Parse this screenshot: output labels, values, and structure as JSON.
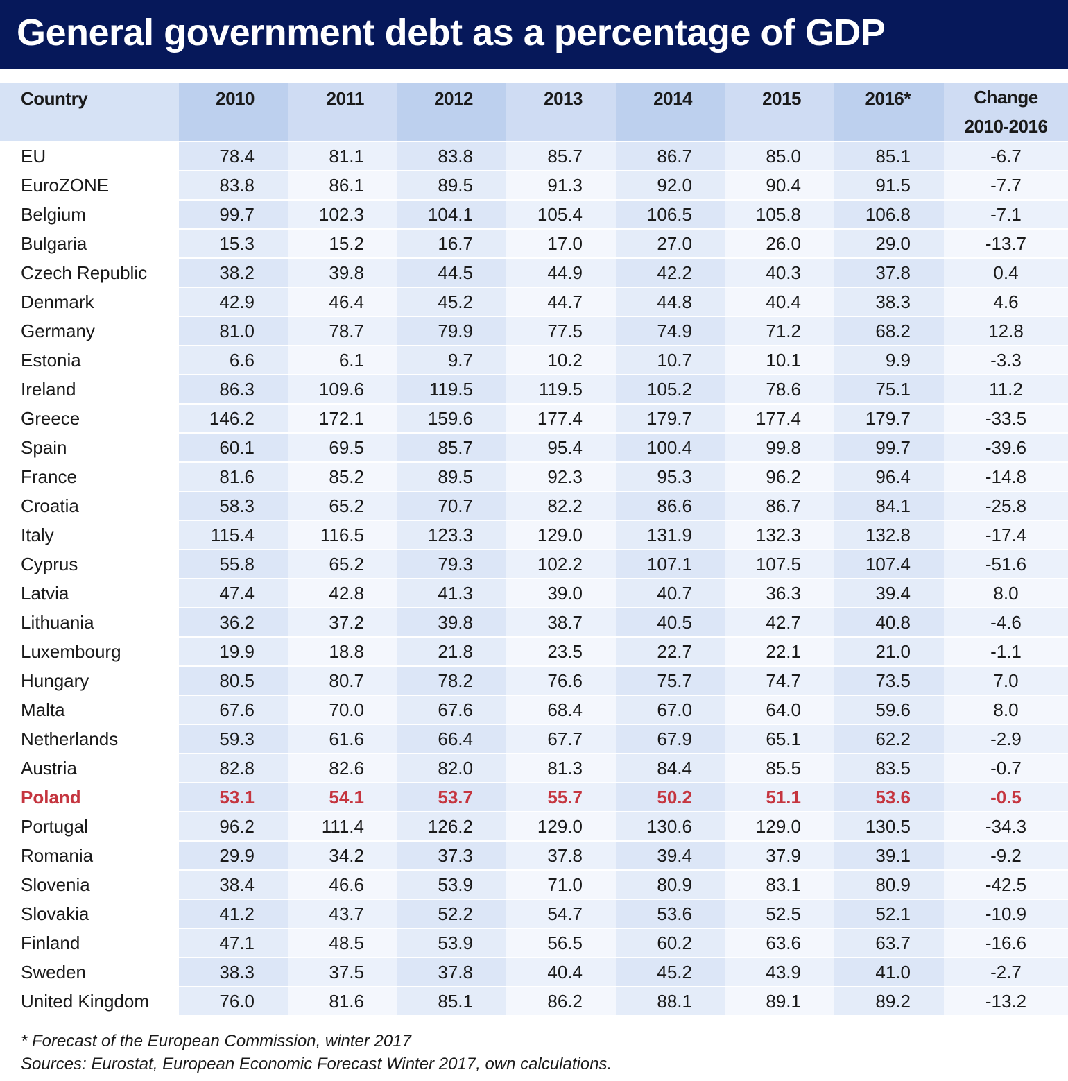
{
  "title": "General government debt as a percentage of GDP",
  "chart_data": {
    "type": "table",
    "title": "General government debt as a percentage of GDP",
    "columns": [
      "Country",
      "2010",
      "2011",
      "2012",
      "2013",
      "2014",
      "2015",
      "2016*",
      "Change 2010-2016"
    ],
    "change_header": [
      "Change",
      "2010-2016"
    ],
    "highlight_row": "Poland",
    "rows": [
      {
        "country": "EU",
        "values": [
          "78.4",
          "81.1",
          "83.8",
          "85.7",
          "86.7",
          "85.0",
          "85.1",
          "-6.7"
        ]
      },
      {
        "country": "EuroZONE",
        "values": [
          "83.8",
          "86.1",
          "89.5",
          "91.3",
          "92.0",
          "90.4",
          "91.5",
          "-7.7"
        ]
      },
      {
        "country": "Belgium",
        "values": [
          "99.7",
          "102.3",
          "104.1",
          "105.4",
          "106.5",
          "105.8",
          "106.8",
          "-7.1"
        ]
      },
      {
        "country": "Bulgaria",
        "values": [
          "15.3",
          "15.2",
          "16.7",
          "17.0",
          "27.0",
          "26.0",
          "29.0",
          "-13.7"
        ]
      },
      {
        "country": "Czech Republic",
        "values": [
          "38.2",
          "39.8",
          "44.5",
          "44.9",
          "42.2",
          "40.3",
          "37.8",
          "0.4"
        ]
      },
      {
        "country": "Denmark",
        "values": [
          "42.9",
          "46.4",
          "45.2",
          "44.7",
          "44.8",
          "40.4",
          "38.3",
          "4.6"
        ]
      },
      {
        "country": "Germany",
        "values": [
          "81.0",
          "78.7",
          "79.9",
          "77.5",
          "74.9",
          "71.2",
          "68.2",
          "12.8"
        ]
      },
      {
        "country": "Estonia",
        "values": [
          "6.6",
          "6.1",
          "9.7",
          "10.2",
          "10.7",
          "10.1",
          "9.9",
          "-3.3"
        ]
      },
      {
        "country": "Ireland",
        "values": [
          "86.3",
          "109.6",
          "119.5",
          "119.5",
          "105.2",
          "78.6",
          "75.1",
          "11.2"
        ]
      },
      {
        "country": "Greece",
        "values": [
          "146.2",
          "172.1",
          "159.6",
          "177.4",
          "179.7",
          "177.4",
          "179.7",
          "-33.5"
        ]
      },
      {
        "country": "Spain",
        "values": [
          "60.1",
          "69.5",
          "85.7",
          "95.4",
          "100.4",
          "99.8",
          "99.7",
          "-39.6"
        ]
      },
      {
        "country": "France",
        "values": [
          "81.6",
          "85.2",
          "89.5",
          "92.3",
          "95.3",
          "96.2",
          "96.4",
          "-14.8"
        ]
      },
      {
        "country": "Croatia",
        "values": [
          "58.3",
          "65.2",
          "70.7",
          "82.2",
          "86.6",
          "86.7",
          "84.1",
          "-25.8"
        ]
      },
      {
        "country": "Italy",
        "values": [
          "115.4",
          "116.5",
          "123.3",
          "129.0",
          "131.9",
          "132.3",
          "132.8",
          "-17.4"
        ]
      },
      {
        "country": "Cyprus",
        "values": [
          "55.8",
          "65.2",
          "79.3",
          "102.2",
          "107.1",
          "107.5",
          "107.4",
          "-51.6"
        ]
      },
      {
        "country": "Latvia",
        "values": [
          "47.4",
          "42.8",
          "41.3",
          "39.0",
          "40.7",
          "36.3",
          "39.4",
          "8.0"
        ]
      },
      {
        "country": "Lithuania",
        "values": [
          "36.2",
          "37.2",
          "39.8",
          "38.7",
          "40.5",
          "42.7",
          "40.8",
          "-4.6"
        ]
      },
      {
        "country": "Luxembourg",
        "values": [
          "19.9",
          "18.8",
          "21.8",
          "23.5",
          "22.7",
          "22.1",
          "21.0",
          "-1.1"
        ]
      },
      {
        "country": "Hungary",
        "values": [
          "80.5",
          "80.7",
          "78.2",
          "76.6",
          "75.7",
          "74.7",
          "73.5",
          "7.0"
        ]
      },
      {
        "country": "Malta",
        "values": [
          "67.6",
          "70.0",
          "67.6",
          "68.4",
          "67.0",
          "64.0",
          "59.6",
          "8.0"
        ]
      },
      {
        "country": "Netherlands",
        "values": [
          "59.3",
          "61.6",
          "66.4",
          "67.7",
          "67.9",
          "65.1",
          "62.2",
          "-2.9"
        ]
      },
      {
        "country": "Austria",
        "values": [
          "82.8",
          "82.6",
          "82.0",
          "81.3",
          "84.4",
          "85.5",
          "83.5",
          "-0.7"
        ]
      },
      {
        "country": "Poland",
        "values": [
          "53.1",
          "54.1",
          "53.7",
          "55.7",
          "50.2",
          "51.1",
          "53.6",
          "-0.5"
        ]
      },
      {
        "country": "Portugal",
        "values": [
          "96.2",
          "111.4",
          "126.2",
          "129.0",
          "130.6",
          "129.0",
          "130.5",
          "-34.3"
        ]
      },
      {
        "country": "Romania",
        "values": [
          "29.9",
          "34.2",
          "37.3",
          "37.8",
          "39.4",
          "37.9",
          "39.1",
          "-9.2"
        ]
      },
      {
        "country": "Slovenia",
        "values": [
          "38.4",
          "46.6",
          "53.9",
          "71.0",
          "80.9",
          "83.1",
          "80.9",
          "-42.5"
        ]
      },
      {
        "country": "Slovakia",
        "values": [
          "41.2",
          "43.7",
          "52.2",
          "54.7",
          "53.6",
          "52.5",
          "52.1",
          "-10.9"
        ]
      },
      {
        "country": "Finland",
        "values": [
          "47.1",
          "48.5",
          "53.9",
          "56.5",
          "60.2",
          "63.6",
          "63.7",
          "-16.6"
        ]
      },
      {
        "country": "Sweden",
        "values": [
          "38.3",
          "37.5",
          "37.8",
          "40.4",
          "45.2",
          "43.9",
          "41.0",
          "-2.7"
        ]
      },
      {
        "country": "United Kingdom",
        "values": [
          "76.0",
          "81.6",
          "85.1",
          "86.2",
          "88.1",
          "89.1",
          "89.2",
          "-13.2"
        ]
      }
    ]
  },
  "footnotes": {
    "forecast": "* Forecast of the European Commission, winter 2017",
    "sources": "Sources: Eurostat, European Economic Forecast Winter 2017, own calculations."
  },
  "colors": {
    "title_bar": "#06185a",
    "highlight": "#c5353f"
  }
}
